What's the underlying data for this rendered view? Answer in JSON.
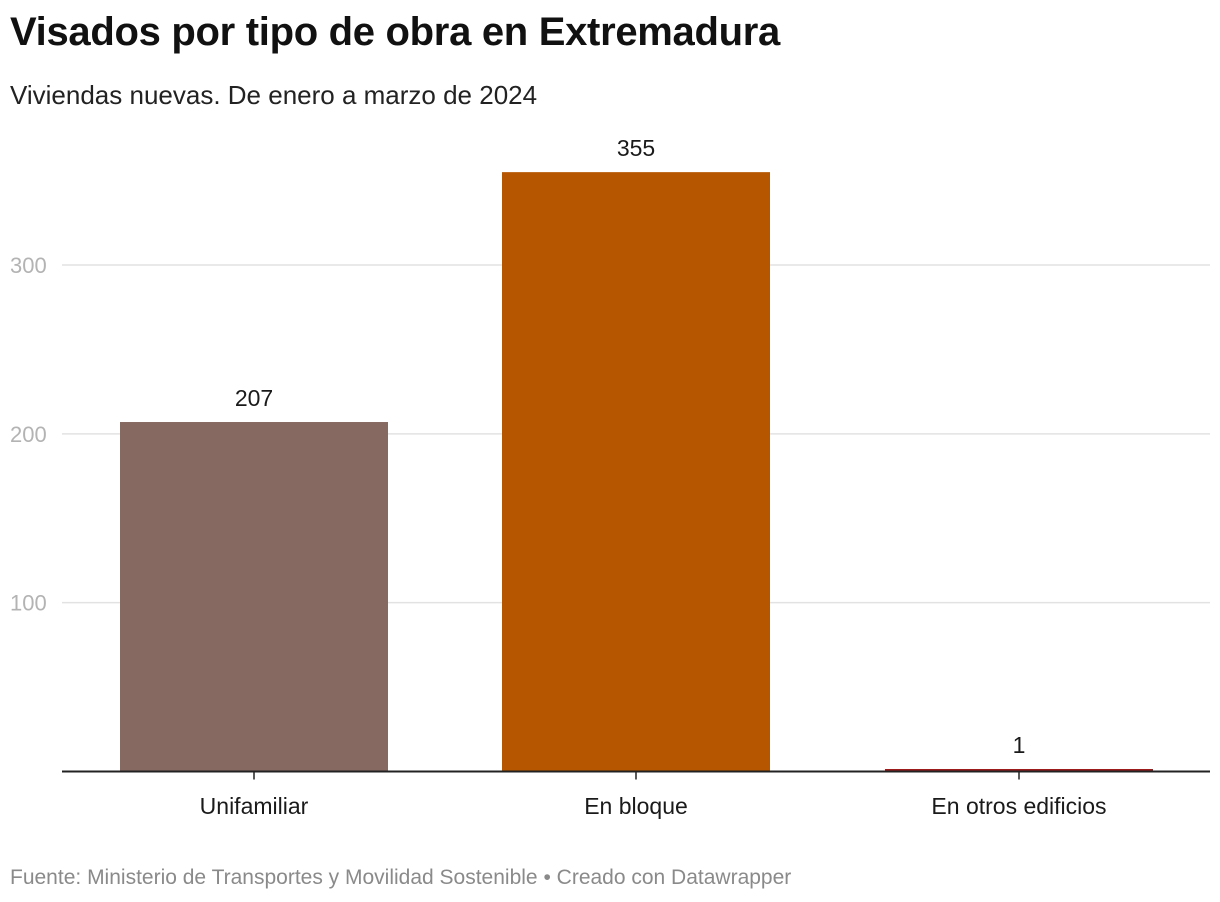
{
  "header": {
    "title": "Visados por tipo de obra en Extremadura",
    "subtitle": "Viviendas nuevas. De enero a marzo de 2024"
  },
  "footer": {
    "source_label": "Fuente:",
    "source": "Ministerio de Transportes y Movilidad Sostenible",
    "separator": "•",
    "credit": "Creado con Datawrapper"
  },
  "chart_data": {
    "type": "bar",
    "title": "Visados por tipo de obra en Extremadura",
    "subtitle": "Viviendas nuevas. De enero a marzo de 2024",
    "xlabel": "",
    "ylabel": "",
    "categories": [
      "Unifamiliar",
      "En bloque",
      "En otros edificios"
    ],
    "values": [
      207,
      355,
      1
    ],
    "colors": [
      "#866A61",
      "#B65700",
      "#9E1B1B"
    ],
    "ylim": [
      0,
      355
    ],
    "yticks": [
      100,
      200,
      300
    ],
    "grid": true,
    "legend": "none",
    "data_labels": true
  }
}
